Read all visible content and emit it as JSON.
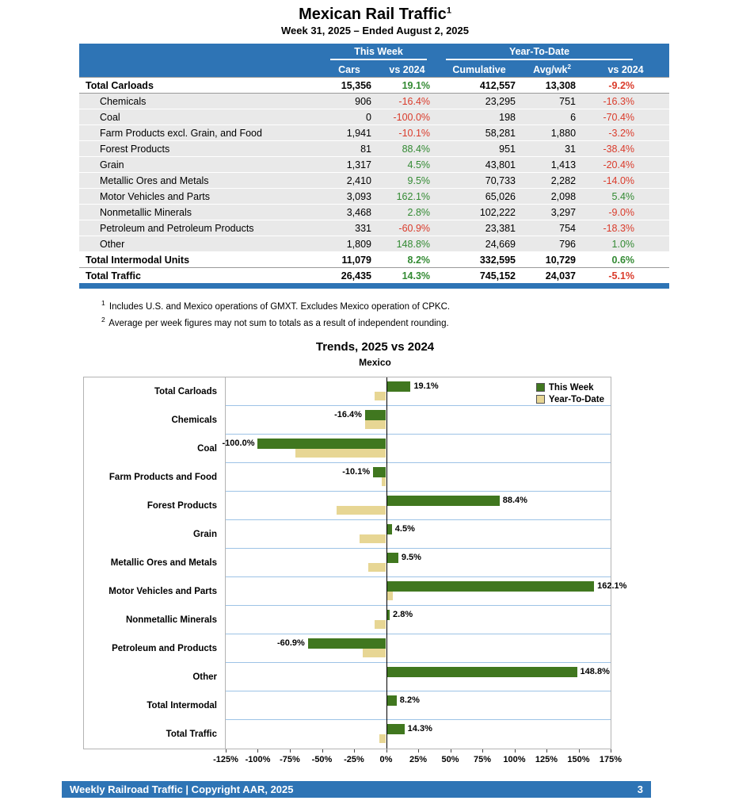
{
  "page": {
    "title": "Mexican Rail Traffic",
    "title_sup": "1",
    "subtitle": "Week 31, 2025 – Ended August 2, 2025"
  },
  "theme": {
    "header_blue": "#2E74B5",
    "positive_green": "#338a33",
    "negative_red": "#da3b2b"
  },
  "table": {
    "group_headers": {
      "this_week": "This Week",
      "ytd": "Year-To-Date"
    },
    "col_headers": {
      "cars": "Cars",
      "vs2024_week": "vs 2024",
      "cumulative": "Cumulative",
      "avgwk": "Avg/wk",
      "avgwk_sup": "2",
      "vs2024_ytd": "vs 2024"
    },
    "rows": [
      {
        "label": "Total Carloads",
        "type": "total",
        "cars": "15,356",
        "vs_week": "19.1%",
        "cumulative": "412,557",
        "avgwk": "13,308",
        "vs_ytd": "-9.2%"
      },
      {
        "label": "Chemicals",
        "type": "commodity",
        "cars": "906",
        "vs_week": "-16.4%",
        "cumulative": "23,295",
        "avgwk": "751",
        "vs_ytd": "-16.3%"
      },
      {
        "label": "Coal",
        "type": "commodity",
        "cars": "0",
        "vs_week": "-100.0%",
        "cumulative": "198",
        "avgwk": "6",
        "vs_ytd": "-70.4%"
      },
      {
        "label": "Farm Products excl. Grain, and Food",
        "type": "commodity",
        "cars": "1,941",
        "vs_week": "-10.1%",
        "cumulative": "58,281",
        "avgwk": "1,880",
        "vs_ytd": "-3.2%"
      },
      {
        "label": "Forest Products",
        "type": "commodity",
        "cars": "81",
        "vs_week": "88.4%",
        "cumulative": "951",
        "avgwk": "31",
        "vs_ytd": "-38.4%"
      },
      {
        "label": "Grain",
        "type": "commodity",
        "cars": "1,317",
        "vs_week": "4.5%",
        "cumulative": "43,801",
        "avgwk": "1,413",
        "vs_ytd": "-20.4%"
      },
      {
        "label": "Metallic Ores and Metals",
        "type": "commodity",
        "cars": "2,410",
        "vs_week": "9.5%",
        "cumulative": "70,733",
        "avgwk": "2,282",
        "vs_ytd": "-14.0%"
      },
      {
        "label": "Motor Vehicles and Parts",
        "type": "commodity",
        "cars": "3,093",
        "vs_week": "162.1%",
        "cumulative": "65,026",
        "avgwk": "2,098",
        "vs_ytd": "5.4%"
      },
      {
        "label": "Nonmetallic Minerals",
        "type": "commodity",
        "cars": "3,468",
        "vs_week": "2.8%",
        "cumulative": "102,222",
        "avgwk": "3,297",
        "vs_ytd": "-9.0%"
      },
      {
        "label": "Petroleum and Petroleum Products",
        "type": "commodity",
        "cars": "331",
        "vs_week": "-60.9%",
        "cumulative": "23,381",
        "avgwk": "754",
        "vs_ytd": "-18.3%"
      },
      {
        "label": "Other",
        "type": "commodity",
        "cars": "1,809",
        "vs_week": "148.8%",
        "cumulative": "24,669",
        "avgwk": "796",
        "vs_ytd": "1.0%"
      },
      {
        "label": "Total Intermodal Units",
        "type": "total",
        "cars": "11,079",
        "vs_week": "8.2%",
        "cumulative": "332,595",
        "avgwk": "10,729",
        "vs_ytd": "0.6%"
      },
      {
        "label": "Total Traffic",
        "type": "total",
        "cars": "26,435",
        "vs_week": "14.3%",
        "cumulative": "745,152",
        "avgwk": "24,037",
        "vs_ytd": "-5.1%"
      }
    ]
  },
  "footnotes": [
    {
      "sup": "1",
      "text": "Includes U.S. and Mexico operations of GMXT. Excludes Mexico operation of CPKC."
    },
    {
      "sup": "2",
      "text": "Average per week figures may not sum to totals as a result of independent rounding."
    }
  ],
  "chart_data": {
    "type": "bar",
    "orientation": "horizontal",
    "title": "Trends, 2025 vs 2024",
    "subtitle": "Mexico",
    "categories": [
      "Total Carloads",
      "Chemicals",
      "Coal",
      "Farm Products and Food",
      "Forest Products",
      "Grain",
      "Metallic Ores and Metals",
      "Motor Vehicles and Parts",
      "Nonmetallic Minerals",
      "Petroleum and Products",
      "Other",
      "Total Intermodal",
      "Total Traffic"
    ],
    "series": [
      {
        "name": "This Week",
        "color": "#40771f",
        "values": [
          19.1,
          -16.4,
          -100.0,
          -10.1,
          88.4,
          4.5,
          9.5,
          162.1,
          2.8,
          -60.9,
          148.8,
          8.2,
          14.3
        ]
      },
      {
        "name": "Year-To-Date",
        "color": "#e7d694",
        "values": [
          -9.2,
          -16.3,
          -70.4,
          -3.2,
          -38.4,
          -20.4,
          -14.0,
          5.4,
          -9.0,
          -18.3,
          1.0,
          0.6,
          -5.1
        ]
      }
    ],
    "data_labels": [
      "19.1%",
      "-16.4%",
      "-100.0%",
      "-10.1%",
      "88.4%",
      "4.5%",
      "9.5%",
      "162.1%",
      "2.8%",
      "-60.9%",
      "148.8%",
      "8.2%",
      "14.3%"
    ],
    "xlim": [
      -125,
      175
    ],
    "xticks": [
      "-125%",
      "-100%",
      "-75%",
      "-50%",
      "-25%",
      "0%",
      "25%",
      "50%",
      "75%",
      "100%",
      "125%",
      "150%",
      "175%"
    ],
    "grid": "category-separators",
    "legend_position": "top-right"
  },
  "footer": {
    "left": "Weekly Railroad Traffic | Copyright AAR, 2025",
    "page": "3"
  }
}
